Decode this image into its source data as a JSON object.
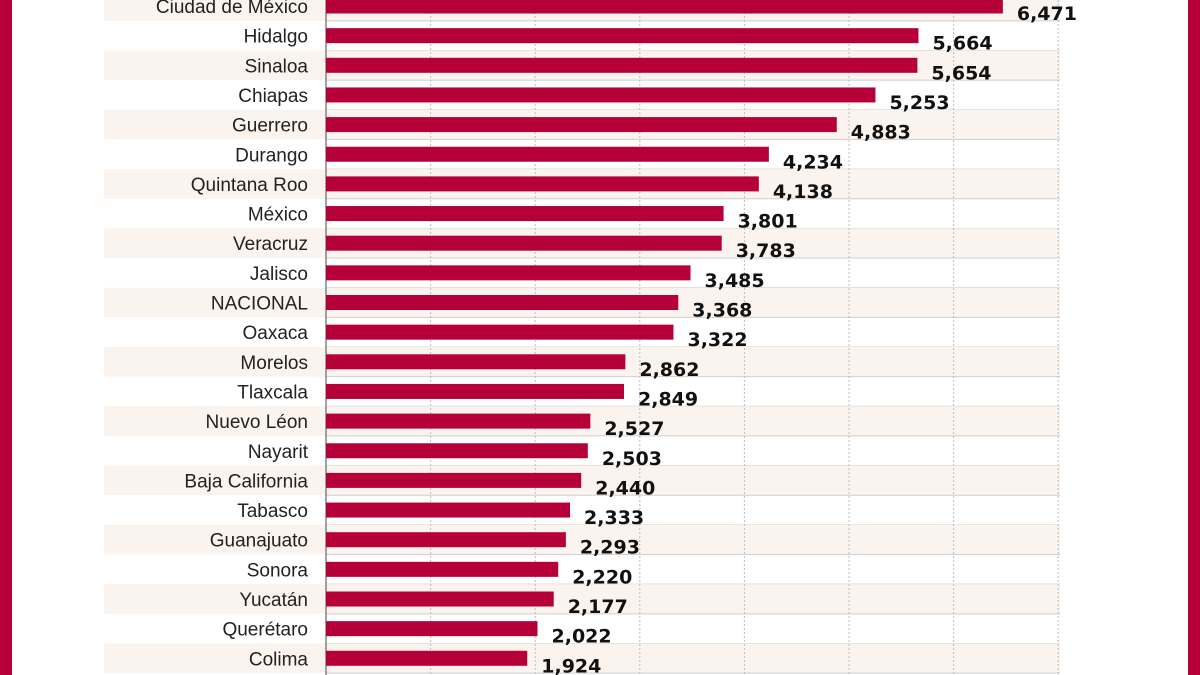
{
  "colors": {
    "frame": "#b5003a",
    "bar": "#b5003a",
    "stripe": "#fbf3ee",
    "grid": "#bdbdbd",
    "axis": "#666666"
  },
  "chart_data": {
    "type": "bar",
    "orientation": "horizontal",
    "grid": true,
    "xlim": [
      0,
      7000
    ],
    "categories": [
      "Ciudad de México",
      "Hidalgo",
      "Sinaloa",
      "Chiapas",
      "Guerrero",
      "Durango",
      "Quintana Roo",
      "México",
      "Veracruz",
      "Jalisco",
      "NACIONAL",
      "Oaxaca",
      "Morelos",
      "Tlaxcala",
      "Nuevo Léon",
      "Nayarit",
      "Baja California",
      "Tabasco",
      "Guanajuato",
      "Sonora",
      "Yucatán",
      "Querétaro",
      "Colima"
    ],
    "values": [
      6471,
      5664,
      5654,
      5253,
      4883,
      4234,
      4138,
      3801,
      3783,
      3485,
      3368,
      3322,
      2862,
      2849,
      2527,
      2503,
      2440,
      2333,
      2293,
      2220,
      2177,
      2022,
      1924
    ],
    "value_labels": [
      "6,471",
      "5,664",
      "5,654",
      "5,253",
      "4,883",
      "4,234",
      "4,138",
      "3,801",
      "3,783",
      "3,485",
      "3,368",
      "3,322",
      "2,862",
      "2,849",
      "2,527",
      "2,503",
      "2,440",
      "2,333",
      "2,293",
      "2,220",
      "2,177",
      "2,022",
      "1,924"
    ]
  }
}
